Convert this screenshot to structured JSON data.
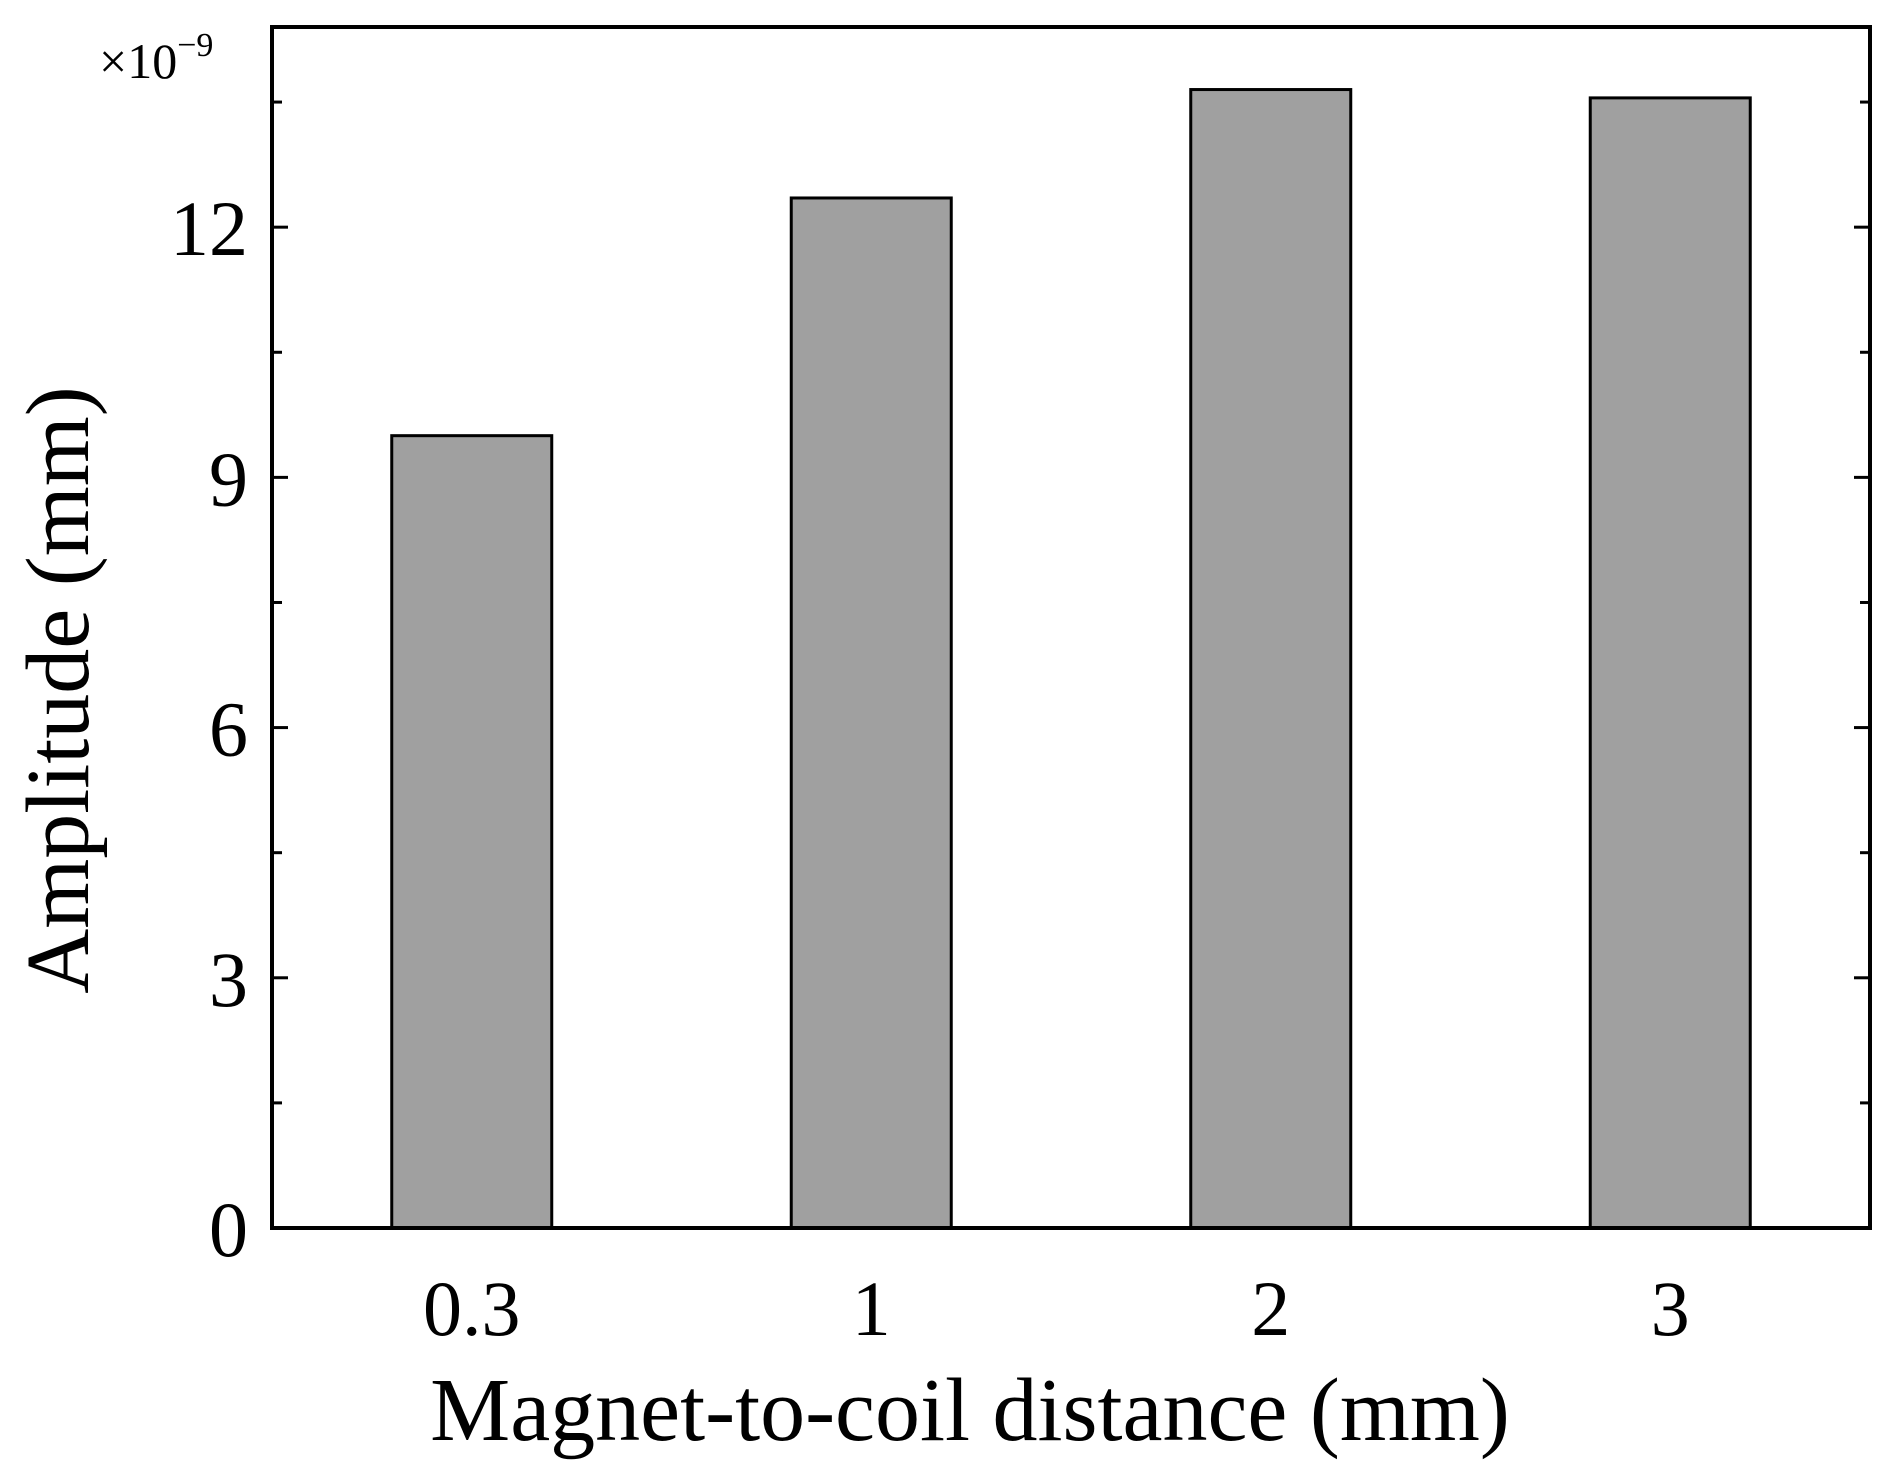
{
  "chart_data": {
    "type": "bar",
    "categories": [
      "0.3",
      "1",
      "2",
      "3"
    ],
    "values": [
      9.5,
      12.35,
      13.65,
      13.55
    ],
    "xlabel": "Magnet-to-coil distance (mm)",
    "ylabel": "Amplitude (mm)",
    "ylim": [
      0,
      14.4
    ],
    "yticks": [
      "0",
      "3",
      "6",
      "9",
      "12"
    ],
    "y_minor_tick_step": 1.5,
    "scale_base": "×10",
    "scale_exponent": "−9",
    "grid": false,
    "bar_color": "#a0a0a0",
    "edge_color": "#000000"
  }
}
